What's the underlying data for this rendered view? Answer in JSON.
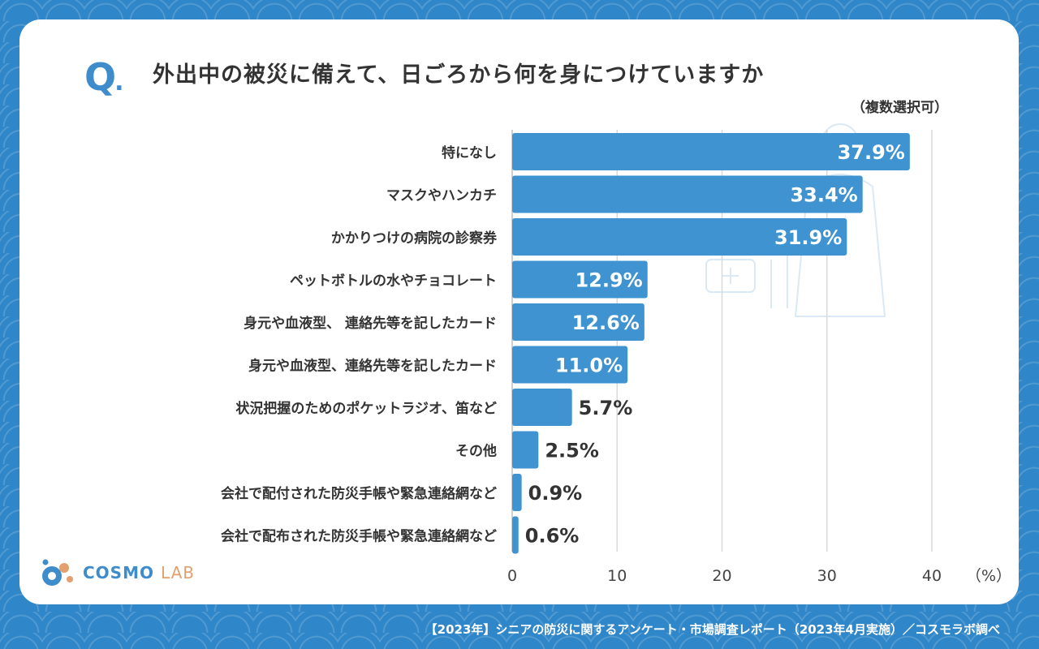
{
  "question": {
    "mark": "Q",
    "mark_dot": ".",
    "text": "外出中の被災に備えて、日ごろから何を身につけていますか",
    "note": "（複数選択可）"
  },
  "chart_data": {
    "type": "bar",
    "orientation": "horizontal",
    "categories": [
      "特になし",
      "マスクやハンカチ",
      "かかりつけの病院の診察券",
      "ペットボトルの水やチョコレート",
      "身元や血液型、 連絡先等を記したカード",
      "身元や血液型、連絡先等を記したカード",
      "状況把握のためのポケットラジオ、笛など",
      "その他",
      "会社で配付された防災手帳や緊急連絡網など",
      "会社で配布された防災手帳や緊急連絡網など"
    ],
    "values": [
      37.9,
      33.4,
      31.9,
      12.9,
      12.6,
      11.0,
      5.7,
      2.5,
      0.9,
      0.6
    ],
    "value_labels": [
      "37.9%",
      "33.4%",
      "31.9%",
      "12.9%",
      "12.6%",
      "11.0%",
      "5.7%",
      "2.5%",
      "0.9%",
      "0.6%"
    ],
    "xlim": [
      0,
      40
    ],
    "xticks": [
      "0",
      "10",
      "20",
      "30",
      "40"
    ],
    "unit_label": "（%）",
    "grid": true,
    "bar_color": "#3f93d1"
  },
  "logo": {
    "main": "COSMO",
    "sub": "LAB"
  },
  "footer": "【2023年】シニアの防災に関するアンケート・市場調査レポート（2023年4月実施）／コスモラボ調べ",
  "colors": {
    "background": "#2f86c8",
    "accent": "#3e8ccb",
    "logo_orange": "#e3a06e"
  }
}
